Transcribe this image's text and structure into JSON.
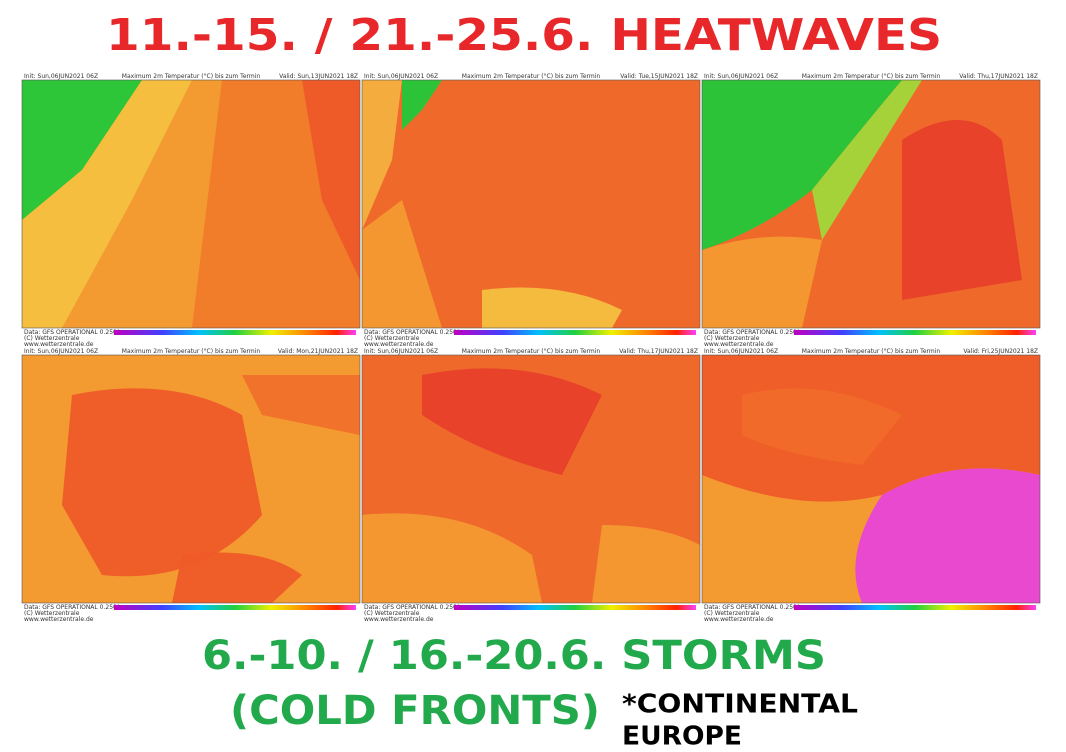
{
  "header": {
    "title": "11.-15. / 21.-25.6. HEATWAVES"
  },
  "panels": [
    {
      "init": "Init: Sun,06JUN2021 06Z",
      "title": "Maximum 2m Temperatur (°C) bis zum Termin",
      "valid": "Valid: Sun,13JUN2021 18Z"
    },
    {
      "init": "Init: Sun,06JUN2021 06Z",
      "title": "Maximum 2m Temperatur (°C) bis zum Termin",
      "valid": "Valid: Tue,15JUN2021 18Z"
    },
    {
      "init": "Init: Sun,06JUN2021 06Z",
      "title": "Maximum 2m Temperatur (°C) bis zum Termin",
      "valid": "Valid: Thu,17JUN2021 18Z"
    },
    {
      "init": "Init: Sun,06JUN2021 06Z",
      "title": "Maximum 2m Temperatur (°C) bis zum Termin",
      "valid": "Valid: Mon,21JUN2021 18Z"
    },
    {
      "init": "Init: Sun,06JUN2021 06Z",
      "title": "Maximum 2m Temperatur (°C) bis zum Termin",
      "valid": "Valid: Thu,17JUN2021 18Z"
    },
    {
      "init": "Init: Sun,06JUN2021 06Z",
      "title": "Maximum 2m Temperatur (°C) bis zum Termin",
      "valid": "Valid: Fri,25JUN2021 18Z"
    }
  ],
  "panel_footer": {
    "data": "Data: GFS OPERATIONAL 0.250°",
    "copyright": "(C) Wetterzentrale",
    "url": "www.wetterzentrale.de"
  },
  "footer": {
    "line1": "6.-10. / 16.-20.6. STORMS",
    "line2": "(COLD FRONTS)",
    "note1": "*CONTINENTAL",
    "note2": "EUROPE"
  }
}
